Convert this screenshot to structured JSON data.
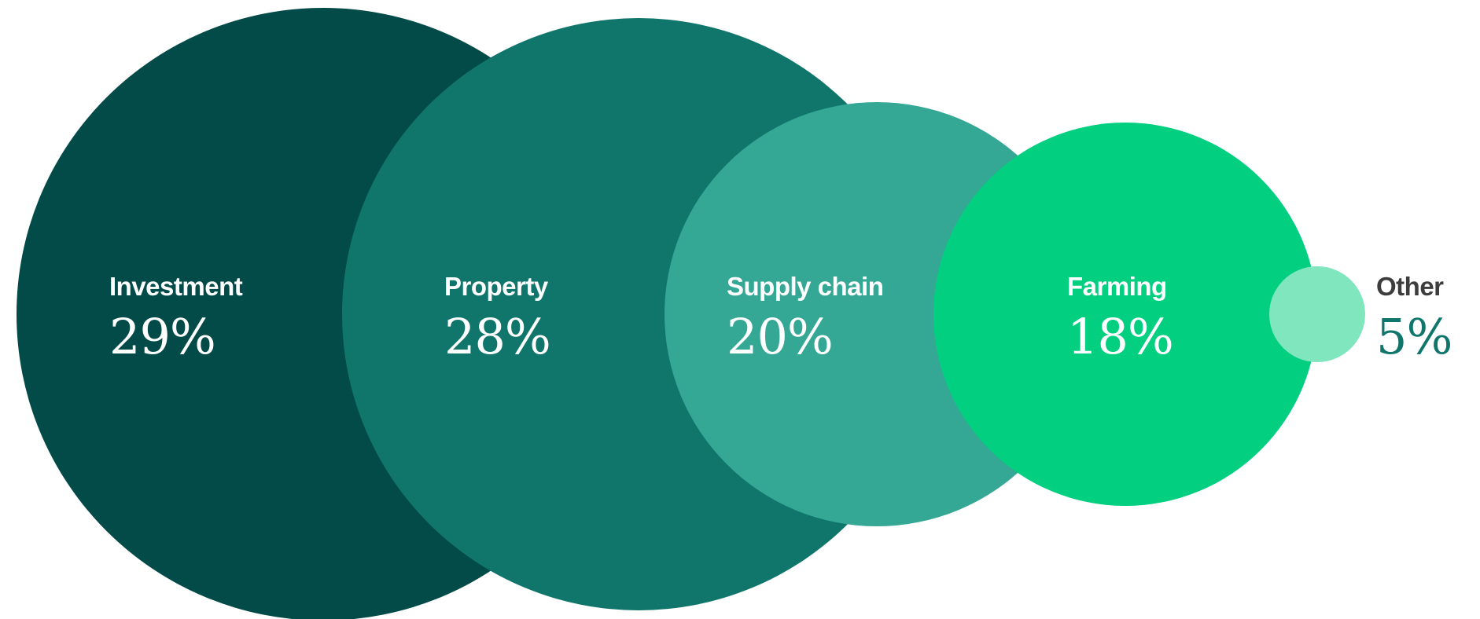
{
  "chart_data": {
    "type": "bubble",
    "unit": "%",
    "categories": [
      "Investment",
      "Property",
      "Supply chain",
      "Farming",
      "Other"
    ],
    "values": [
      29,
      28,
      20,
      18,
      5
    ],
    "value_labels": [
      "29%",
      "28%",
      "20%",
      "18%",
      "5%"
    ],
    "colors": [
      "#024b48",
      "#10766c",
      "#35a795",
      "#02cf80",
      "#80e6bd"
    ],
    "label_colors": [
      "#ffffff",
      "#ffffff",
      "#ffffff",
      "#ffffff",
      "#3d3d3d"
    ],
    "value_label_colors": [
      "#ffffff",
      "#ffffff",
      "#ffffff",
      "#ffffff",
      "#10766c"
    ],
    "legend": "none",
    "grid": false
  }
}
